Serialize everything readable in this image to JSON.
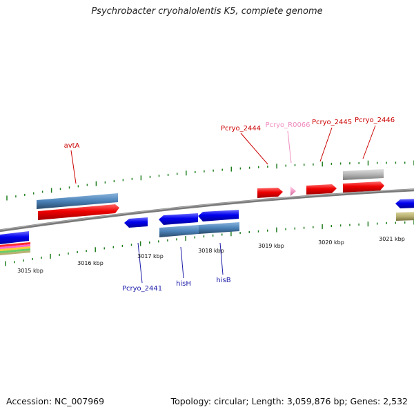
{
  "title": "Psychrobacter cryohalolentis K5, complete genome",
  "footer": {
    "accession": "Accession: NC_007969",
    "topology": "Topology: circular; Length: 3,059,876 bp; Genes: 2,532"
  },
  "colors": {
    "forward": "#e8001c",
    "reverse": "#0000e6",
    "cds_blue": "#4a82b8",
    "rna_pink": "#f49ac6",
    "grey": "#b4b4b4",
    "olive": "#b8b070",
    "backbone": "#808080",
    "gc_tick": "#1e7d1e",
    "label_red": "#cc0000",
    "label_blue": "#1a1aa8",
    "label_pink": "#f08cc0"
  },
  "scale_ticks": [
    {
      "label": "3015 kbp"
    },
    {
      "label": "3016 kbp"
    },
    {
      "label": "3017 kbp"
    },
    {
      "label": "3018 kbp"
    },
    {
      "label": "3019 kbp"
    },
    {
      "label": "3020 kbp"
    },
    {
      "label": "3021 kbp"
    }
  ],
  "gene_labels": [
    {
      "name": "avtA",
      "color": "label_red"
    },
    {
      "name": "Pcryo_2444",
      "color": "label_red"
    },
    {
      "name": "Pcryo_R0066",
      "color": "label_pink"
    },
    {
      "name": "Pcryo_2445",
      "color": "label_red"
    },
    {
      "name": "Pcryo_2446",
      "color": "label_red"
    },
    {
      "name": "Pcryo_2441",
      "color": "label_blue"
    },
    {
      "name": "hisH",
      "color": "label_blue"
    },
    {
      "name": "hisB",
      "color": "label_blue"
    }
  ]
}
